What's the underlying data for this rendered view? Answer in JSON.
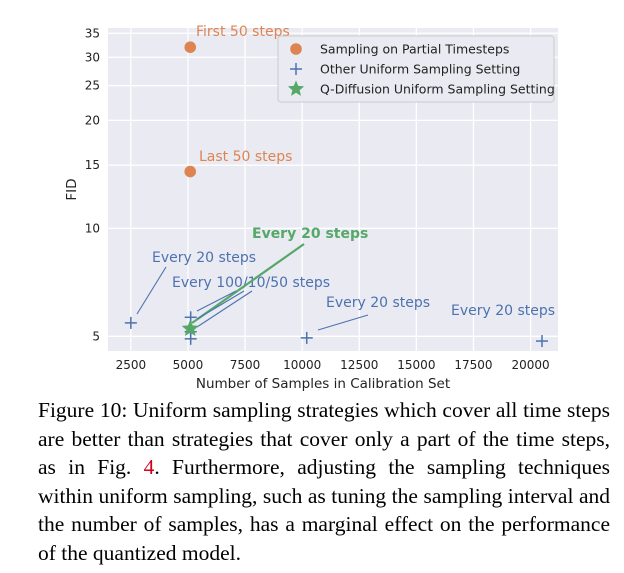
{
  "chart_data": {
    "type": "scatter",
    "xlabel": "Number of Samples in Calibration Set",
    "ylabel": "FID",
    "y_scale": "log",
    "xlim": [
      1500,
      21200
    ],
    "ylim": [
      4.55,
      36.2
    ],
    "x_ticks": [
      2500,
      5000,
      7500,
      10000,
      12500,
      15000,
      17500,
      20000
    ],
    "y_ticks": [
      5,
      10,
      15,
      20,
      25,
      30,
      35
    ],
    "grid": true,
    "legend_position": "top-right",
    "colors": {
      "orange": "#dd8452",
      "blue": "#4c72b0",
      "green": "#55a868",
      "grid_bg": "#eaeaf2"
    },
    "series": [
      {
        "name": "Sampling on Partial Timesteps",
        "marker": "circle",
        "color": "#dd8452",
        "points": [
          {
            "x": 5100,
            "y": 32
          },
          {
            "x": 5100,
            "y": 14.4
          }
        ]
      },
      {
        "name": "Other Uniform Sampling Setting",
        "marker": "plus",
        "color": "#4c72b0",
        "points": [
          {
            "x": 2500,
            "y": 5.45
          },
          {
            "x": 5120,
            "y": 5.65
          },
          {
            "x": 5120,
            "y": 5.15
          },
          {
            "x": 5120,
            "y": 4.92
          },
          {
            "x": 10200,
            "y": 4.95
          },
          {
            "x": 20500,
            "y": 4.85
          }
        ]
      },
      {
        "name": "Q-Diffusion Uniform Sampling Setting",
        "marker": "star",
        "color": "#55a868",
        "points": [
          {
            "x": 5100,
            "y": 5.25
          }
        ]
      }
    ],
    "annotations": [
      {
        "text": "First 50 steps",
        "color": "#dd8452"
      },
      {
        "text": "Last 50 steps",
        "color": "#dd8452"
      },
      {
        "text": "Every 20 steps",
        "color": "#55a868"
      },
      {
        "text": "Every 20 steps",
        "color": "#4c72b0"
      },
      {
        "text": "Every 100/10/50 steps",
        "color": "#4c72b0"
      },
      {
        "text": "Every 20 steps",
        "color": "#4c72b0"
      },
      {
        "text": "Every 20 steps",
        "color": "#4c72b0"
      }
    ]
  },
  "caption": {
    "part1": "Figure 10: Uniform sampling strategies which cover all time steps are better than strategies that cover only a part of the time steps, as in Fig. ",
    "ref": "4",
    "part2": ". Furthermore, adjusting the sampling techniques within uniform sampling, such as tuning the sampling interval and the number of samples, has a marginal effect on the performance of the quantized model."
  }
}
